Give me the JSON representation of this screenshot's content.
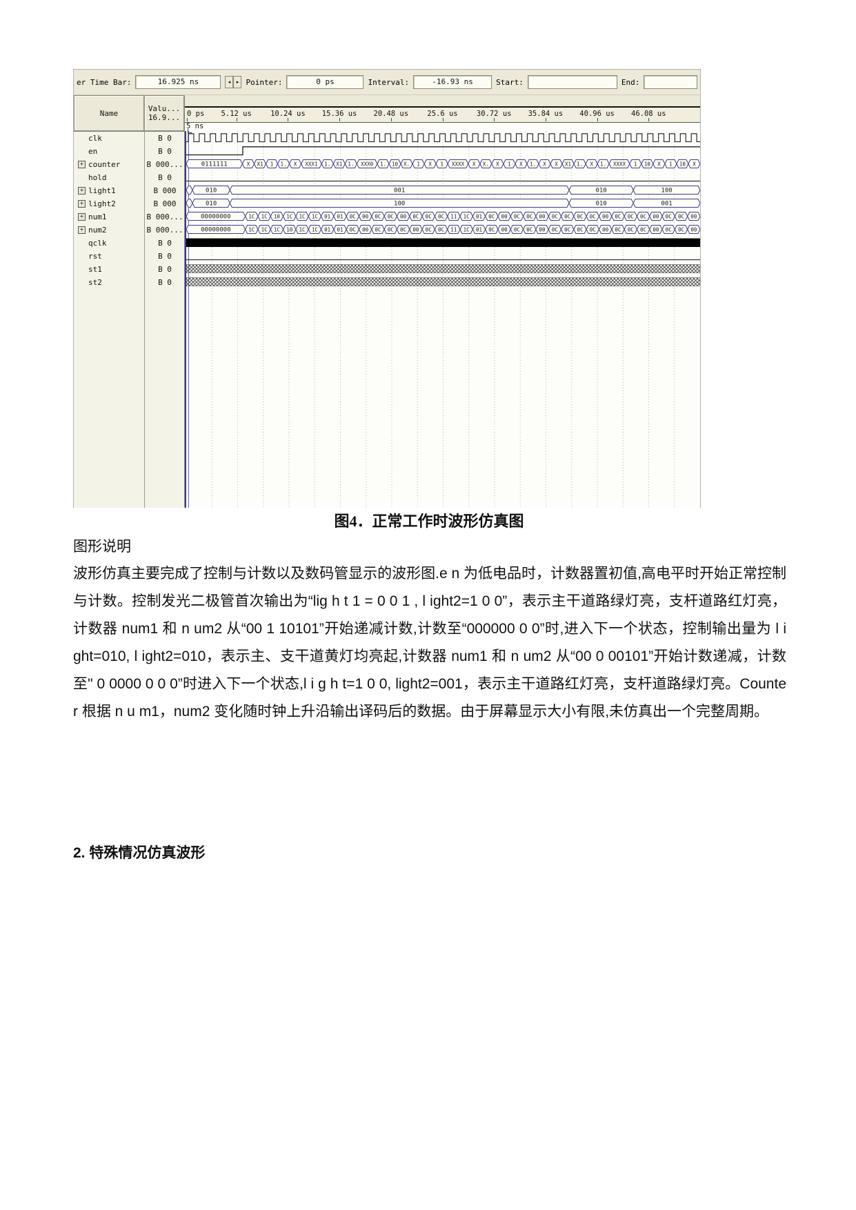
{
  "window": {
    "toolbar": {
      "time_bar_label": "er Time Bar:",
      "time_bar_value": "16.925 ns",
      "pointer_label": "Pointer:",
      "pointer_value": "0 ps",
      "interval_label": "Interval:",
      "interval_value": "-16.93 ns",
      "start_label": "Start:",
      "start_value": "",
      "end_label": "End:",
      "end_value": ""
    },
    "name_header": "Name",
    "value_header_line1": "Valu...",
    "value_header_line2": "16.9...",
    "marker_label": "5 ns"
  },
  "ui": {
    "expand_glyph": "+",
    "spin_left_glyph": "◂",
    "spin_right_glyph": "▸"
  },
  "colors": {
    "bus_outline": "#3c3c8e",
    "bus_fill": "#fdfdf5",
    "trace": "#1a1a1a",
    "toolbar_bg": "#ece9d8",
    "ruler_bg": "#f1eedd"
  },
  "chart_data": {
    "type": "waveform",
    "timeline_ticks": [
      "0 ps",
      "5.12 us",
      "10.24 us",
      "15.36 us",
      "20.48 us",
      "25.6 us",
      "30.72 us",
      "35.84 us",
      "40.96 us",
      "46.08 us"
    ],
    "time_cursor": "16.925 ns",
    "signals": [
      {
        "name": "clk",
        "value": "B 0",
        "kind": "clock",
        "expand": false,
        "cycles": 47
      },
      {
        "name": "en",
        "value": "B 0",
        "kind": "step",
        "expand": false,
        "rise_pct": 11
      },
      {
        "name": "counter",
        "value": "B 000...",
        "kind": "bus",
        "expand": true,
        "segments": [
          {
            "w": 11,
            "label": "0111111"
          },
          {
            "w": 2.3,
            "label": "X"
          },
          {
            "w": 2.3,
            "label": "X1"
          },
          {
            "w": 2.3,
            "label": "1"
          },
          {
            "w": 2.3,
            "label": "1."
          },
          {
            "w": 2.3,
            "label": "X"
          },
          {
            "w": 4,
            "label": "XXX1"
          },
          {
            "w": 2.3,
            "label": "1."
          },
          {
            "w": 2.3,
            "label": "X1"
          },
          {
            "w": 2.3,
            "label": "1."
          },
          {
            "w": 4,
            "label": "XXX0"
          },
          {
            "w": 2.3,
            "label": "1."
          },
          {
            "w": 2.3,
            "label": "10"
          },
          {
            "w": 2.3,
            "label": "X."
          },
          {
            "w": 2.3,
            "label": "1"
          },
          {
            "w": 2.3,
            "label": "X"
          },
          {
            "w": 2.3,
            "label": "1"
          },
          {
            "w": 4,
            "label": "XXXX"
          },
          {
            "w": 2.3,
            "label": "X"
          },
          {
            "w": 2.3,
            "label": "X."
          },
          {
            "w": 2.3,
            "label": "X"
          },
          {
            "w": 2.3,
            "label": "1"
          },
          {
            "w": 2.3,
            "label": "X"
          },
          {
            "w": 2.3,
            "label": "1."
          },
          {
            "w": 2.3,
            "label": "X"
          },
          {
            "w": 2.3,
            "label": "X"
          },
          {
            "w": 2.3,
            "label": "X1"
          },
          {
            "w": 2.3,
            "label": "1."
          },
          {
            "w": 2.3,
            "label": "X"
          },
          {
            "w": 2.3,
            "label": "1."
          },
          {
            "w": 4,
            "label": "XXXX"
          },
          {
            "w": 2.3,
            "label": "1"
          },
          {
            "w": 2.3,
            "label": "10"
          },
          {
            "w": 2.3,
            "label": "X"
          },
          {
            "w": 2.3,
            "label": "1"
          },
          {
            "w": 2.3,
            "label": "10"
          },
          {
            "w": 2.3,
            "label": "X"
          }
        ]
      },
      {
        "name": "hold",
        "value": "B 0",
        "kind": "low",
        "expand": false
      },
      {
        "name": "light1",
        "value": "B 000",
        "kind": "bus",
        "expand": true,
        "segments": [
          {
            "w": 1.2,
            "label": ""
          },
          {
            "w": 7.3,
            "label": "010"
          },
          {
            "w": 66,
            "label": "001"
          },
          {
            "w": 12.5,
            "label": "010"
          },
          {
            "w": 13,
            "label": "100"
          }
        ]
      },
      {
        "name": "light2",
        "value": "B 000",
        "kind": "bus",
        "expand": true,
        "segments": [
          {
            "w": 1.2,
            "label": ""
          },
          {
            "w": 7.3,
            "label": "010"
          },
          {
            "w": 66,
            "label": "100"
          },
          {
            "w": 12.5,
            "label": "010"
          },
          {
            "w": 13,
            "label": "001"
          }
        ]
      },
      {
        "name": "num1",
        "value": "B 000...",
        "kind": "bus",
        "expand": true,
        "segments": [
          {
            "w": 11.5,
            "label": "00000000"
          },
          {
            "w": 2.46,
            "label": "1C"
          },
          {
            "w": 2.46,
            "label": "1C"
          },
          {
            "w": 2.46,
            "label": "10"
          },
          {
            "w": 2.46,
            "label": "1C"
          },
          {
            "w": 2.46,
            "label": "1C"
          },
          {
            "w": 2.46,
            "label": "1C"
          },
          {
            "w": 2.46,
            "label": "01"
          },
          {
            "w": 2.46,
            "label": "01"
          },
          {
            "w": 2.46,
            "label": "0C"
          },
          {
            "w": 2.46,
            "label": "00"
          },
          {
            "w": 2.46,
            "label": "0C"
          },
          {
            "w": 2.46,
            "label": "0C"
          },
          {
            "w": 2.46,
            "label": "00"
          },
          {
            "w": 2.46,
            "label": "0C"
          },
          {
            "w": 2.46,
            "label": "0C"
          },
          {
            "w": 2.46,
            "label": "0C"
          },
          {
            "w": 2.46,
            "label": "11"
          },
          {
            "w": 2.46,
            "label": "1C"
          },
          {
            "w": 2.46,
            "label": "01"
          },
          {
            "w": 2.46,
            "label": "0C"
          },
          {
            "w": 2.46,
            "label": "00"
          },
          {
            "w": 2.46,
            "label": "0C"
          },
          {
            "w": 2.46,
            "label": "0C"
          },
          {
            "w": 2.46,
            "label": "00"
          },
          {
            "w": 2.46,
            "label": "0C"
          },
          {
            "w": 2.46,
            "label": "0C"
          },
          {
            "w": 2.46,
            "label": "0C"
          },
          {
            "w": 2.46,
            "label": "0C"
          },
          {
            "w": 2.46,
            "label": "00"
          },
          {
            "w": 2.46,
            "label": "0C"
          },
          {
            "w": 2.46,
            "label": "0C"
          },
          {
            "w": 2.46,
            "label": "0C"
          },
          {
            "w": 2.46,
            "label": "00"
          },
          {
            "w": 2.46,
            "label": "0C"
          },
          {
            "w": 2.46,
            "label": "0C"
          },
          {
            "w": 2.46,
            "label": "00"
          }
        ]
      },
      {
        "name": "num2",
        "value": "B 000...",
        "kind": "bus",
        "expand": true,
        "segments": [
          {
            "w": 11.5,
            "label": "00000000"
          },
          {
            "w": 2.46,
            "label": "1C"
          },
          {
            "w": 2.46,
            "label": "1C"
          },
          {
            "w": 2.46,
            "label": "1C"
          },
          {
            "w": 2.46,
            "label": "10"
          },
          {
            "w": 2.46,
            "label": "1C"
          },
          {
            "w": 2.46,
            "label": "1C"
          },
          {
            "w": 2.46,
            "label": "01"
          },
          {
            "w": 2.46,
            "label": "01"
          },
          {
            "w": 2.46,
            "label": "0C"
          },
          {
            "w": 2.46,
            "label": "00"
          },
          {
            "w": 2.46,
            "label": "0C"
          },
          {
            "w": 2.46,
            "label": "0C"
          },
          {
            "w": 2.46,
            "label": "0C"
          },
          {
            "w": 2.46,
            "label": "00"
          },
          {
            "w": 2.46,
            "label": "0C"
          },
          {
            "w": 2.46,
            "label": "0C"
          },
          {
            "w": 2.46,
            "label": "11"
          },
          {
            "w": 2.46,
            "label": "1C"
          },
          {
            "w": 2.46,
            "label": "01"
          },
          {
            "w": 2.46,
            "label": "0C"
          },
          {
            "w": 2.46,
            "label": "00"
          },
          {
            "w": 2.46,
            "label": "0C"
          },
          {
            "w": 2.46,
            "label": "0C"
          },
          {
            "w": 2.46,
            "label": "00"
          },
          {
            "w": 2.46,
            "label": "0C"
          },
          {
            "w": 2.46,
            "label": "0C"
          },
          {
            "w": 2.46,
            "label": "0C"
          },
          {
            "w": 2.46,
            "label": "0C"
          },
          {
            "w": 2.46,
            "label": "00"
          },
          {
            "w": 2.46,
            "label": "0C"
          },
          {
            "w": 2.46,
            "label": "0C"
          },
          {
            "w": 2.46,
            "label": "0C"
          },
          {
            "w": 2.46,
            "label": "00"
          },
          {
            "w": 2.46,
            "label": "0C"
          },
          {
            "w": 2.46,
            "label": "0C"
          },
          {
            "w": 2.46,
            "label": "00"
          }
        ]
      },
      {
        "name": "qclk",
        "value": "B 0",
        "kind": "solid",
        "expand": false
      },
      {
        "name": "rst",
        "value": "B 0",
        "kind": "low",
        "expand": false
      },
      {
        "name": "st1",
        "value": "B 0",
        "kind": "hatch",
        "expand": false
      },
      {
        "name": "st2",
        "value": "B 0",
        "kind": "hatch",
        "expand": false
      }
    ]
  },
  "caption": "图4．正常工作时波形仿真图",
  "figure_note": "图形说明",
  "paragraph": "波形仿真主要完成了控制与计数以及数码管显示的波形图.e n 为低电品时，计数器置初值,高电平时开始正常控制与计数。控制发光二极管首次输出为“lig h t 1 = 0 0 1 , l ight2=1 0 0”，表示主干道路绿灯亮，支杆道路红灯亮，计数器 num1 和 n um2 从“00 1 10101”开始递减计数,计数至“000000 0 0”时,进入下一个状态，控制输出量为 l i ght=010, l ight2=010，表示主、支干道黄灯均亮起,计数器 num1 和 n um2 从“00 0 00101”开始计数递减，计数至\" 0 0000 0 0 0”时进入下一个状态,l i g h t=1 0 0, light2=001，表示主干道路红灯亮，支杆道路绿灯亮。Counte r 根据 n u m1，num2 变化随时钟上升沿输出译码后的数据。由于屏幕显示大小有限,未仿真出一个完整周期。",
  "heading2": "2. 特殊情况仿真波形"
}
